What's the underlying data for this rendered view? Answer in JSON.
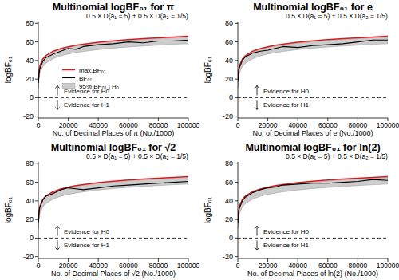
{
  "chart_data": [
    {
      "type": "line",
      "title": "Multinomial logBF₀₁ for π",
      "formula": "0.5 × D(a₁ = 5) + 0.5 × D(a₂ = 1/5)",
      "evidence_labels": [
        "Evidence for H0",
        "Evidence for H1"
      ],
      "reference_line": 0,
      "x_label": "No. of Decimal Places of π (No./1000)",
      "y_label": "logBF₀₁",
      "xlim": [
        0,
        100000
      ],
      "ylim": [
        -22,
        82
      ],
      "xticks": [
        0,
        20000,
        40000,
        60000,
        80000,
        100000
      ],
      "yticks": [
        -20,
        0,
        20,
        40,
        60,
        80
      ],
      "legend": "left",
      "x": [
        100,
        500,
        1000,
        3000,
        5000,
        10000,
        15000,
        20000,
        25000,
        30000,
        40000,
        50000,
        60000,
        70000,
        80000,
        90000,
        100000
      ],
      "series": [
        {
          "name": "max.BF₀₁",
          "type": "line",
          "color": "#d7191c",
          "values": [
            18,
            29.2,
            34,
            41.6,
            45.2,
            50,
            52.8,
            54.8,
            56.4,
            57.6,
            59.6,
            61.2,
            62.4,
            63.5,
            64.4,
            65.3,
            66
          ]
        },
        {
          "name": "BF₀₁",
          "type": "line",
          "color": "#000000",
          "values": [
            16,
            26,
            31,
            39,
            43,
            47,
            50,
            53,
            52,
            55,
            57,
            58,
            60,
            59,
            61,
            61,
            62
          ]
        },
        {
          "name": "95% BF₀₁ | H₀",
          "type": "band",
          "color": "#cccccc",
          "upper": [
            17,
            28,
            33,
            40.5,
            44,
            49,
            52,
            54,
            55.5,
            56.7,
            58.7,
            60.3,
            61.5,
            62.6,
            63.5,
            64.4,
            65.1
          ],
          "lower": [
            10,
            21,
            26,
            33.5,
            37,
            42,
            45,
            47,
            48.5,
            49.7,
            51.7,
            53.3,
            54.5,
            55.6,
            56.5,
            57.4,
            58.1
          ]
        }
      ]
    },
    {
      "type": "line",
      "title": "Multinomial logBF₀₁ for e",
      "formula": "0.5 × D(a₁ = 5) + 0.5 × D(a₂ = 1/5)",
      "evidence_labels": [
        "Evidence for H0",
        "Evidence for H1"
      ],
      "reference_line": 0,
      "x_label": "No. of Decimal Places of e (No./1000)",
      "y_label": "logBF₀₁",
      "xlim": [
        0,
        100000
      ],
      "ylim": [
        -22,
        82
      ],
      "xticks": [
        0,
        20000,
        40000,
        60000,
        80000,
        100000
      ],
      "yticks": [
        -20,
        0,
        20,
        40,
        60,
        80
      ],
      "x": [
        100,
        500,
        1000,
        3000,
        5000,
        10000,
        15000,
        20000,
        25000,
        30000,
        40000,
        50000,
        60000,
        70000,
        80000,
        90000,
        100000
      ],
      "series": [
        {
          "name": "max.BF₀₁",
          "type": "line",
          "color": "#d7191c",
          "values": [
            18,
            29.2,
            34,
            41.6,
            45.2,
            50,
            52.8,
            54.8,
            56.4,
            57.6,
            59.6,
            61.2,
            62.4,
            63.5,
            64.4,
            65.3,
            66
          ]
        },
        {
          "name": "BF₀₁",
          "type": "line",
          "color": "#000000",
          "values": [
            17,
            28,
            32,
            40,
            44,
            48,
            50,
            51,
            53,
            55,
            54,
            56,
            57,
            58,
            60,
            62,
            62
          ]
        },
        {
          "name": "95% BF₀₁ | H₀",
          "type": "band",
          "color": "#cccccc",
          "upper": [
            17,
            28,
            33,
            40.5,
            44,
            49,
            52,
            54,
            55.5,
            56.7,
            58.7,
            60.3,
            61.5,
            62.6,
            63.5,
            64.4,
            65.1
          ],
          "lower": [
            10,
            21,
            26,
            33.5,
            37,
            42,
            45,
            47,
            48.5,
            49.7,
            51.7,
            53.3,
            54.5,
            55.6,
            56.5,
            57.4,
            58.1
          ]
        }
      ]
    },
    {
      "type": "line",
      "title": "Multinomial logBF₀₁ for √2",
      "formula": "0.5 × D(a₁ = 5) + 0.5 × D(a₂ = 1/5)",
      "evidence_labels": [
        "Evidence for H0",
        "Evidence for H1"
      ],
      "reference_line": 0,
      "x_label": "No. of Decimal Places of √2 (No./1000)",
      "y_label": "logBF₀₁",
      "xlim": [
        0,
        100000
      ],
      "ylim": [
        -22,
        82
      ],
      "xticks": [
        0,
        20000,
        40000,
        60000,
        80000,
        100000
      ],
      "yticks": [
        -20,
        0,
        20,
        40,
        60,
        80
      ],
      "x": [
        100,
        500,
        1000,
        3000,
        5000,
        10000,
        15000,
        20000,
        25000,
        30000,
        40000,
        50000,
        60000,
        70000,
        80000,
        90000,
        100000
      ],
      "series": [
        {
          "name": "max.BF₀₁",
          "type": "line",
          "color": "#d7191c",
          "values": [
            18,
            29.2,
            34,
            41.6,
            45.2,
            50,
            52.8,
            54.8,
            56.4,
            57.6,
            59.6,
            61.2,
            62.4,
            63.5,
            64.4,
            65.3,
            66
          ]
        },
        {
          "name": "BF₀₁",
          "type": "line",
          "color": "#000000",
          "values": [
            17,
            28,
            33,
            41,
            45,
            48,
            52,
            54,
            53,
            52,
            54,
            56,
            57,
            58,
            59,
            60,
            61
          ]
        },
        {
          "name": "95% BF₀₁ | H₀",
          "type": "band",
          "color": "#cccccc",
          "upper": [
            17,
            28,
            33,
            40.5,
            44,
            49,
            52,
            54,
            55.5,
            56.7,
            58.7,
            60.3,
            61.5,
            62.6,
            63.5,
            64.4,
            65.1
          ],
          "lower": [
            10,
            21,
            26,
            33.5,
            37,
            42,
            45,
            47,
            48.5,
            49.7,
            51.7,
            53.3,
            54.5,
            55.6,
            56.5,
            57.4,
            58.1
          ]
        }
      ]
    },
    {
      "type": "line",
      "title": "Multinomial logBF₀₁ for ln(2)",
      "formula": "0.5 × D(a₁ = 5) + 0.5 × D(a₂ = 1/5)",
      "evidence_labels": [
        "Evidence for H0",
        "Evidence for H1"
      ],
      "reference_line": 0,
      "x_label": "No. of Decimal Places of ln(2) (No./1000)",
      "y_label": "logBF₀₁",
      "xlim": [
        0,
        100000
      ],
      "ylim": [
        -22,
        82
      ],
      "xticks": [
        0,
        20000,
        40000,
        60000,
        80000,
        100000
      ],
      "yticks": [
        -20,
        0,
        20,
        40,
        60,
        80
      ],
      "x": [
        100,
        500,
        1000,
        3000,
        5000,
        10000,
        15000,
        20000,
        25000,
        30000,
        40000,
        50000,
        60000,
        70000,
        80000,
        90000,
        100000
      ],
      "series": [
        {
          "name": "max.BF₀₁",
          "type": "line",
          "color": "#d7191c",
          "values": [
            18,
            29.2,
            34,
            41.6,
            45.2,
            50,
            52.8,
            54.8,
            56.4,
            57.6,
            59.6,
            61.2,
            62.4,
            63.5,
            64.4,
            65.3,
            66
          ]
        },
        {
          "name": "BF₀₁",
          "type": "line",
          "color": "#000000",
          "values": [
            16,
            27,
            32,
            40,
            44,
            49,
            52,
            54,
            55,
            57,
            58,
            59,
            59,
            60,
            61,
            63,
            62
          ]
        },
        {
          "name": "95% BF₀₁ | H₀",
          "type": "band",
          "color": "#cccccc",
          "upper": [
            17,
            28,
            33,
            40.5,
            44,
            49,
            52,
            54,
            55.5,
            56.7,
            58.7,
            60.3,
            61.5,
            62.6,
            63.5,
            64.4,
            65.1
          ],
          "lower": [
            10,
            21,
            26,
            33.5,
            37,
            42,
            45,
            47,
            48.5,
            49.7,
            51.7,
            53.3,
            54.5,
            55.6,
            56.5,
            57.4,
            58.1
          ]
        }
      ]
    }
  ]
}
